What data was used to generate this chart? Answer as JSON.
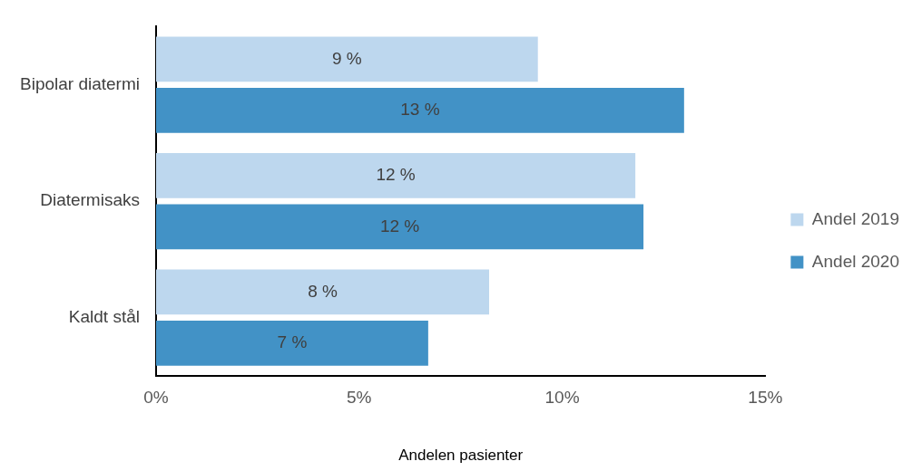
{
  "chart_data": {
    "type": "bar",
    "orientation": "horizontal",
    "xlabel": "Andelen pasienter",
    "categories": [
      "Bipolar diatermi",
      "Diatermisaks",
      "Kaldt stål"
    ],
    "series": [
      {
        "name": "Andel 2019",
        "color": "#bdd7ee",
        "values": [
          9.4,
          11.8,
          8.2
        ],
        "value_labels": [
          "9 %",
          "12 %",
          "8 %"
        ]
      },
      {
        "name": "Andel 2020",
        "color": "#4292c6",
        "values": [
          13.0,
          12.0,
          6.7
        ],
        "value_labels": [
          "13 %",
          "12 %",
          "7 %"
        ]
      }
    ],
    "xlim": [
      0,
      15
    ],
    "xticks": [
      {
        "value": 0,
        "label": "0%"
      },
      {
        "value": 5,
        "label": "5%"
      },
      {
        "value": 10,
        "label": "10%"
      },
      {
        "value": 15,
        "label": "15%"
      }
    ],
    "grid": false,
    "legend": "right"
  }
}
